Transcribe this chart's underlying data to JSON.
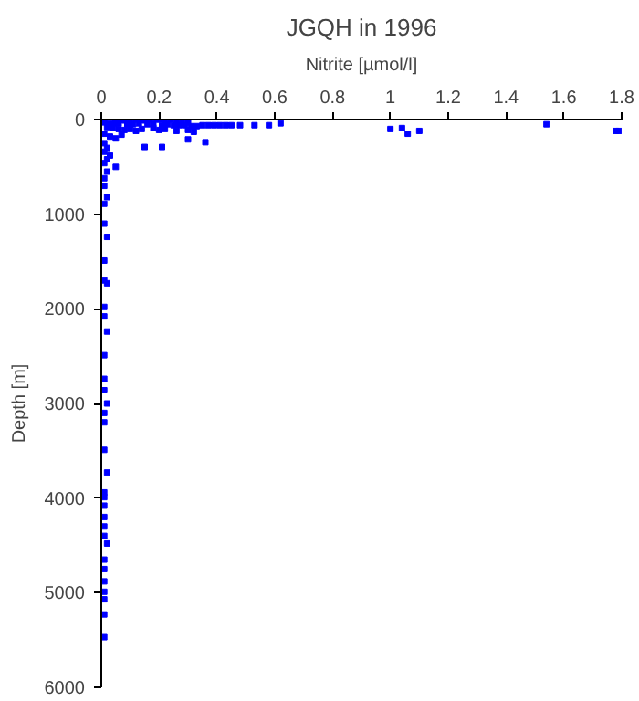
{
  "chart_data": {
    "type": "scatter",
    "title": "JGQH in 1996",
    "xlabel": "Nitrite [µmol/l]",
    "ylabel": "Depth [m]",
    "xlim": [
      0,
      1.8
    ],
    "xticks": [
      0,
      0.2,
      0.4,
      0.6,
      0.8,
      1,
      1.2,
      1.4,
      1.6,
      1.8
    ],
    "ylim": [
      6000,
      0
    ],
    "yticks": [
      0,
      1000,
      2000,
      3000,
      4000,
      5000,
      6000
    ],
    "grid": false,
    "marker": "square",
    "series": [
      {
        "color": "#0000ff",
        "x": [
          0.05,
          0.07,
          0.08,
          0.1,
          0.12,
          0.14,
          0.15,
          0.17,
          0.19,
          0.2,
          0.22,
          0.24,
          0.26,
          0.28,
          0.3,
          0.01,
          0.03,
          0.05,
          0.06,
          0.09,
          0.11,
          0.13,
          0.16,
          0.18,
          0.21,
          0.23,
          0.25,
          0.27,
          0.29,
          0.31,
          0.33,
          0.35,
          0.37,
          0.39,
          0.41,
          0.43,
          0.45,
          0.48,
          0.53,
          0.58,
          0.62,
          0.02,
          0.04,
          0.06,
          0.08,
          0.1,
          0.12,
          0.14,
          0.18,
          0.2,
          0.22,
          0.26,
          0.3,
          0.32,
          0.01,
          0.03,
          0.05,
          0.07,
          0.15,
          0.21,
          0.36,
          0.3,
          1.0,
          1.04,
          1.06,
          1.1,
          1.54,
          1.78,
          1.79,
          0.01,
          0.02,
          0.01,
          0.03,
          0.02,
          0.01,
          0.05,
          0.02,
          0.01,
          0.01,
          0.02,
          0.01,
          0.01,
          0.02,
          0.01,
          0.01,
          0.02,
          0.01,
          0.01,
          0.02,
          0.01,
          0.01,
          0.01,
          0.02,
          0.01,
          0.01,
          0.01,
          0.02,
          0.01,
          0.01,
          0.01,
          0.01,
          0.01,
          0.01,
          0.02,
          0.01,
          0.01,
          0.01,
          0.01,
          0.01,
          0.01,
          0.01
        ],
        "values": [
          0,
          0,
          10,
          0,
          0,
          0,
          10,
          0,
          0,
          0,
          10,
          0,
          20,
          20,
          30,
          30,
          40,
          40,
          40,
          50,
          50,
          40,
          50,
          50,
          60,
          50,
          60,
          60,
          60,
          70,
          70,
          60,
          60,
          60,
          60,
          60,
          60,
          60,
          60,
          60,
          40,
          80,
          90,
          100,
          110,
          100,
          120,
          100,
          90,
          110,
          100,
          120,
          110,
          130,
          150,
          180,
          200,
          160,
          290,
          290,
          240,
          210,
          100,
          90,
          150,
          120,
          50,
          120,
          120,
          250,
          300,
          340,
          380,
          420,
          460,
          500,
          550,
          620,
          700,
          820,
          890,
          1100,
          1240,
          1490,
          1700,
          1730,
          1980,
          2080,
          2240,
          2490,
          2740,
          2860,
          3000,
          3100,
          3200,
          3490,
          3730,
          3940,
          3990,
          4080,
          4200,
          4300,
          4400,
          4480,
          4650,
          4750,
          4880,
          4990,
          5070,
          5230,
          5470
        ]
      }
    ]
  }
}
